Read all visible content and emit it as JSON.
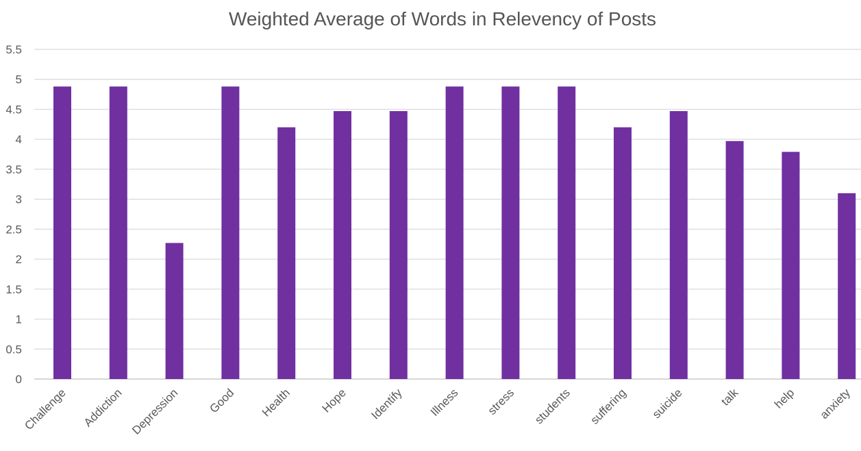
{
  "chart_data": {
    "type": "bar",
    "title": "Weighted Average of Words in Relevency of Posts",
    "xlabel": "",
    "ylabel": "",
    "ylim": [
      0,
      5.5
    ],
    "yticks": [
      "0",
      "0.5",
      "1",
      "1.5",
      "2",
      "2.5",
      "3",
      "3.5",
      "4",
      "4.5",
      "5",
      "5.5"
    ],
    "grid": true,
    "categories": [
      "Challenge",
      "Addiction",
      "Depression",
      "Good",
      "Health",
      "Hope",
      "Identify",
      "Illness",
      "stress",
      "students",
      "suffering",
      "suicide",
      "talk",
      "help",
      "anxiety"
    ],
    "values": [
      4.88,
      4.88,
      2.27,
      4.88,
      4.2,
      4.47,
      4.47,
      4.88,
      4.88,
      4.88,
      4.2,
      4.47,
      3.97,
      3.79,
      3.1
    ],
    "bar_color": "#7030a0"
  }
}
